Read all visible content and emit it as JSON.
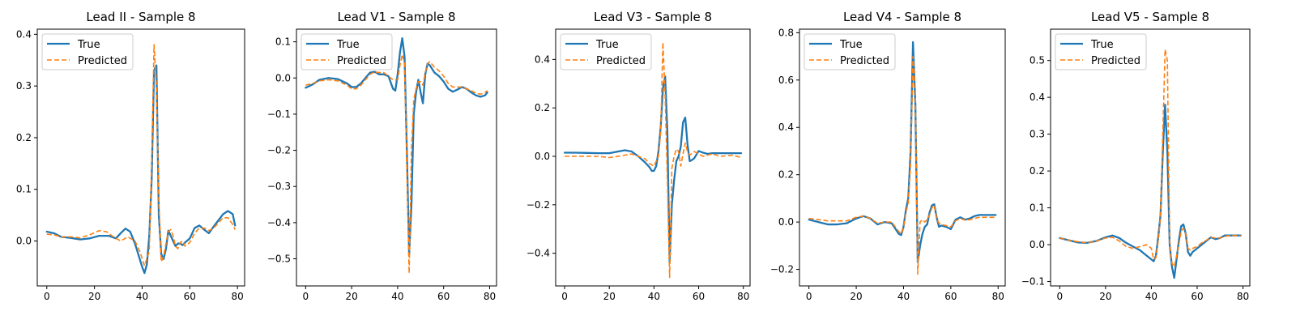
{
  "colors": {
    "true_line": "#1f77b4",
    "predicted_line": "#ff7f0e",
    "axes": "#000000"
  },
  "legend": {
    "labels": [
      "True",
      "Predicted"
    ],
    "placement": "upper-left"
  },
  "chart_data": [
    {
      "type": "line",
      "title": "Lead II - Sample 8",
      "xlim": [
        -4,
        83
      ],
      "ylim": [
        -0.087,
        0.41
      ],
      "xticks": [
        0,
        20,
        40,
        60,
        80
      ],
      "yticks": [
        0.0,
        0.1,
        0.2,
        0.3,
        0.4
      ],
      "ytick_labels": [
        "0.0",
        "0.1",
        "0.2",
        "0.3",
        "0.4"
      ],
      "series": [
        {
          "name": "True",
          "style": "solid",
          "x": [
            0,
            3,
            6,
            10,
            14,
            18,
            22,
            26,
            29,
            31,
            33,
            35,
            37,
            39,
            40,
            41,
            42,
            43,
            44,
            45,
            46,
            47,
            48,
            49,
            50,
            51,
            52,
            53,
            54,
            55,
            56,
            57,
            58,
            60,
            62,
            64,
            66,
            68,
            70,
            72,
            74,
            76,
            78,
            79
          ],
          "y": [
            0.018,
            0.015,
            0.008,
            0.006,
            0.003,
            0.005,
            0.01,
            0.01,
            0.005,
            0.015,
            0.024,
            0.018,
            -0.005,
            -0.035,
            -0.05,
            -0.062,
            -0.045,
            0.01,
            0.12,
            0.33,
            0.34,
            0.05,
            -0.025,
            -0.035,
            -0.015,
            0.02,
            0.01,
            0.0,
            -0.01,
            -0.005,
            -0.005,
            -0.008,
            -0.003,
            0.005,
            0.025,
            0.03,
            0.022,
            0.015,
            0.028,
            0.04,
            0.052,
            0.058,
            0.052,
            0.03
          ]
        },
        {
          "name": "Predicted",
          "style": "dashed",
          "x": [
            0,
            3,
            6,
            10,
            14,
            18,
            22,
            25,
            28,
            31,
            34,
            37,
            39,
            41,
            43,
            44,
            45,
            46,
            47,
            48,
            49,
            50,
            51,
            52,
            53,
            54,
            55,
            56,
            57,
            58,
            60,
            62,
            64,
            66,
            68,
            70,
            72,
            74,
            76,
            78,
            79
          ],
          "y": [
            0.013,
            0.012,
            0.008,
            0.008,
            0.006,
            0.012,
            0.02,
            0.018,
            0.008,
            0.0,
            0.008,
            0.0,
            -0.02,
            -0.048,
            -0.02,
            0.15,
            0.38,
            0.3,
            0.08,
            -0.04,
            -0.03,
            -0.005,
            0.018,
            0.022,
            0.01,
            -0.01,
            -0.015,
            -0.003,
            0.0,
            -0.01,
            -0.003,
            0.015,
            0.025,
            0.025,
            0.02,
            0.025,
            0.035,
            0.045,
            0.045,
            0.032,
            0.022
          ]
        }
      ]
    },
    {
      "type": "line",
      "title": "Lead V1 - Sample 8",
      "xlim": [
        -4,
        83
      ],
      "ylim": [
        -0.575,
        0.135
      ],
      "xticks": [
        0,
        20,
        40,
        60,
        80
      ],
      "yticks": [
        0.1,
        0.0,
        -0.1,
        -0.2,
        -0.3,
        -0.4,
        -0.5
      ],
      "ytick_labels": [
        "0.1",
        "0.0",
        "−0.1",
        "−0.2",
        "−0.3",
        "−0.4",
        "−0.5"
      ],
      "series": [
        {
          "name": "True",
          "style": "solid",
          "x": [
            0,
            3,
            6,
            10,
            14,
            18,
            20,
            22,
            24,
            26,
            28,
            30,
            32,
            34,
            36,
            38,
            39,
            40,
            41,
            42,
            43,
            44,
            45,
            46,
            47,
            48,
            49,
            50,
            51,
            52,
            53,
            54,
            56,
            58,
            60,
            62,
            64,
            66,
            68,
            70,
            72,
            74,
            76,
            78,
            79
          ],
          "y": [
            -0.027,
            -0.018,
            -0.005,
            0.0,
            -0.003,
            -0.015,
            -0.025,
            -0.025,
            -0.015,
            0.0,
            0.015,
            0.017,
            0.01,
            0.01,
            0.005,
            -0.03,
            -0.035,
            0.01,
            0.07,
            0.11,
            0.06,
            -0.2,
            -0.49,
            -0.35,
            -0.1,
            -0.04,
            -0.005,
            -0.04,
            -0.07,
            0.01,
            0.04,
            0.035,
            0.015,
            0.005,
            -0.01,
            -0.03,
            -0.038,
            -0.032,
            -0.025,
            -0.03,
            -0.04,
            -0.048,
            -0.052,
            -0.048,
            -0.04
          ]
        },
        {
          "name": "Predicted",
          "style": "dashed",
          "x": [
            0,
            3,
            6,
            10,
            14,
            18,
            20,
            22,
            24,
            26,
            28,
            30,
            32,
            34,
            36,
            38,
            40,
            41,
            42,
            43,
            44,
            45,
            46,
            47,
            48,
            49,
            50,
            51,
            52,
            53,
            54,
            56,
            58,
            60,
            62,
            64,
            66,
            68,
            70,
            72,
            74,
            76,
            78,
            79
          ],
          "y": [
            -0.02,
            -0.015,
            -0.008,
            -0.005,
            -0.008,
            -0.02,
            -0.03,
            -0.03,
            -0.02,
            -0.005,
            0.01,
            0.017,
            0.015,
            0.015,
            0.005,
            -0.005,
            -0.005,
            0.035,
            0.065,
            0.04,
            -0.25,
            -0.54,
            -0.2,
            -0.06,
            -0.03,
            -0.01,
            -0.01,
            -0.02,
            0.015,
            0.04,
            0.045,
            0.03,
            0.02,
            0.005,
            -0.015,
            -0.025,
            -0.025,
            -0.025,
            -0.03,
            -0.035,
            -0.042,
            -0.045,
            -0.04,
            -0.035
          ]
        }
      ]
    },
    {
      "type": "line",
      "title": "Lead V3 - Sample 8",
      "xlim": [
        -4,
        83
      ],
      "ylim": [
        -0.535,
        0.525
      ],
      "xticks": [
        0,
        20,
        40,
        60,
        80
      ],
      "yticks": [
        0.4,
        0.2,
        0.0,
        -0.2,
        -0.4
      ],
      "ytick_labels": [
        "0.4",
        "0.2",
        "0.0",
        "−0.2",
        "−0.4"
      ],
      "series": [
        {
          "name": "True",
          "style": "solid",
          "x": [
            0,
            5,
            10,
            15,
            20,
            24,
            27,
            30,
            33,
            36,
            38,
            39,
            40,
            41,
            42,
            43,
            44,
            45,
            46,
            47,
            48,
            49,
            50,
            51,
            52,
            53,
            54,
            55,
            56,
            57,
            58,
            60,
            62,
            64,
            66,
            70,
            75,
            79
          ],
          "y": [
            0.015,
            0.015,
            0.014,
            0.013,
            0.013,
            0.02,
            0.025,
            0.02,
            0.0,
            -0.025,
            -0.045,
            -0.06,
            -0.06,
            -0.04,
            0.02,
            0.12,
            0.28,
            0.33,
            0.1,
            -0.44,
            -0.2,
            -0.1,
            -0.02,
            0.0,
            0.04,
            0.14,
            0.16,
            0.05,
            -0.02,
            -0.015,
            -0.008,
            0.022,
            0.015,
            0.01,
            0.013,
            0.013,
            0.013,
            0.013
          ]
        },
        {
          "name": "Predicted",
          "style": "dashed",
          "x": [
            0,
            5,
            10,
            15,
            20,
            24,
            27,
            30,
            33,
            36,
            38,
            40,
            42,
            43,
            44,
            45,
            46,
            47,
            48,
            49,
            50,
            51,
            52,
            53,
            54,
            55,
            56,
            58,
            60,
            62,
            64,
            66,
            70,
            75,
            79
          ],
          "y": [
            0.0,
            0.0,
            0.0,
            0.0,
            -0.005,
            0.0,
            0.005,
            0.01,
            0.0,
            -0.01,
            -0.03,
            -0.04,
            0.0,
            0.1,
            0.47,
            0.25,
            -0.1,
            -0.5,
            -0.05,
            0.0,
            0.03,
            0.02,
            -0.04,
            0.01,
            0.055,
            0.02,
            0.005,
            0.02,
            0.01,
            0.0,
            0.005,
            0.01,
            0.0,
            0.005,
            -0.005
          ]
        }
      ]
    },
    {
      "type": "line",
      "title": "Lead V4 - Sample 8",
      "xlim": [
        -4,
        83
      ],
      "ylim": [
        -0.27,
        0.815
      ],
      "xticks": [
        0,
        20,
        40,
        60,
        80
      ],
      "yticks": [
        0.8,
        0.6,
        0.4,
        0.2,
        0.0,
        -0.2
      ],
      "ytick_labels": [
        "0.8",
        "0.6",
        "0.4",
        "0.2",
        "0.0",
        "−0.2"
      ],
      "series": [
        {
          "name": "True",
          "style": "solid",
          "x": [
            0,
            4,
            8,
            12,
            16,
            20,
            23,
            26,
            29,
            32,
            35,
            38,
            39,
            40,
            41,
            42,
            43,
            44,
            45,
            46,
            47,
            48,
            49,
            50,
            51,
            52,
            53,
            54,
            55,
            56,
            58,
            60,
            62,
            64,
            66,
            68,
            70,
            72,
            74,
            76,
            78,
            79
          ],
          "y": [
            0.01,
            0.0,
            -0.01,
            -0.01,
            -0.005,
            0.015,
            0.025,
            0.015,
            -0.01,
            0.0,
            -0.005,
            -0.05,
            -0.055,
            -0.02,
            0.05,
            0.1,
            0.3,
            0.76,
            0.5,
            -0.17,
            -0.1,
            -0.05,
            -0.02,
            -0.01,
            0.04,
            0.07,
            0.075,
            0.02,
            -0.02,
            -0.015,
            -0.02,
            -0.03,
            0.01,
            0.02,
            0.01,
            0.015,
            0.025,
            0.03,
            0.03,
            0.03,
            0.03,
            0.03
          ]
        },
        {
          "name": "Predicted",
          "style": "dashed",
          "x": [
            0,
            4,
            8,
            12,
            16,
            20,
            23,
            26,
            29,
            32,
            35,
            38,
            39,
            40,
            41,
            42,
            43,
            44,
            45,
            46,
            47,
            48,
            49,
            50,
            51,
            52,
            53,
            54,
            55,
            56,
            58,
            60,
            62,
            64,
            66,
            68,
            70,
            72,
            74,
            76,
            78,
            79
          ],
          "y": [
            0.015,
            0.01,
            0.005,
            0.005,
            0.005,
            0.02,
            0.025,
            0.015,
            -0.005,
            0.0,
            0.0,
            -0.04,
            -0.05,
            -0.02,
            0.04,
            0.08,
            0.25,
            0.7,
            0.55,
            -0.22,
            0.0,
            0.01,
            0.0,
            0.01,
            0.03,
            0.06,
            0.07,
            0.015,
            -0.005,
            -0.01,
            -0.015,
            -0.02,
            0.005,
            0.015,
            0.008,
            0.01,
            0.015,
            0.02,
            0.02,
            0.02,
            0.02,
            0.02
          ]
        }
      ]
    },
    {
      "type": "line",
      "title": "Lead V5 - Sample 8",
      "xlim": [
        -4,
        83
      ],
      "ylim": [
        -0.112,
        0.585
      ],
      "xticks": [
        0,
        20,
        40,
        60,
        80
      ],
      "yticks": [
        0.5,
        0.4,
        0.3,
        0.2,
        0.1,
        0.0,
        -0.1
      ],
      "ytick_labels": [
        "0.5",
        "0.4",
        "0.3",
        "0.2",
        "0.1",
        "0.0",
        "−0.1"
      ],
      "series": [
        {
          "name": "True",
          "style": "solid",
          "x": [
            0,
            4,
            8,
            12,
            16,
            20,
            23,
            26,
            29,
            32,
            35,
            38,
            40,
            41,
            42,
            43,
            44,
            45,
            46,
            47,
            48,
            49,
            50,
            51,
            52,
            53,
            54,
            55,
            56,
            57,
            58,
            60,
            62,
            64,
            66,
            68,
            70,
            72,
            74,
            76,
            78,
            79
          ],
          "y": [
            0.018,
            0.012,
            0.006,
            0.005,
            0.01,
            0.02,
            0.025,
            0.018,
            0.005,
            -0.005,
            -0.015,
            -0.03,
            -0.04,
            -0.045,
            -0.03,
            0.02,
            0.08,
            0.25,
            0.38,
            0.25,
            0.0,
            -0.06,
            -0.09,
            -0.04,
            0.01,
            0.05,
            0.055,
            0.03,
            -0.02,
            -0.03,
            -0.02,
            -0.01,
            0.0,
            0.01,
            0.02,
            0.015,
            0.018,
            0.025,
            0.025,
            0.025,
            0.025,
            0.025
          ]
        },
        {
          "name": "Predicted",
          "style": "dashed",
          "x": [
            0,
            4,
            8,
            12,
            16,
            20,
            23,
            26,
            29,
            32,
            35,
            38,
            40,
            41,
            42,
            43,
            44,
            45,
            46,
            47,
            48,
            49,
            50,
            51,
            52,
            53,
            54,
            55,
            56,
            57,
            58,
            60,
            62,
            64,
            66,
            68,
            70,
            72,
            74,
            76,
            78,
            79
          ],
          "y": [
            0.018,
            0.012,
            0.008,
            0.005,
            0.01,
            0.018,
            0.02,
            0.01,
            -0.005,
            -0.01,
            -0.005,
            0.0,
            -0.01,
            -0.04,
            -0.035,
            0.01,
            0.08,
            0.3,
            0.53,
            0.5,
            0.0,
            -0.05,
            -0.06,
            -0.03,
            0.0,
            0.035,
            0.045,
            0.03,
            -0.01,
            -0.015,
            -0.01,
            -0.005,
            0.005,
            0.012,
            0.02,
            0.018,
            0.018,
            0.022,
            0.025,
            0.025,
            0.025,
            0.025
          ]
        }
      ]
    }
  ]
}
